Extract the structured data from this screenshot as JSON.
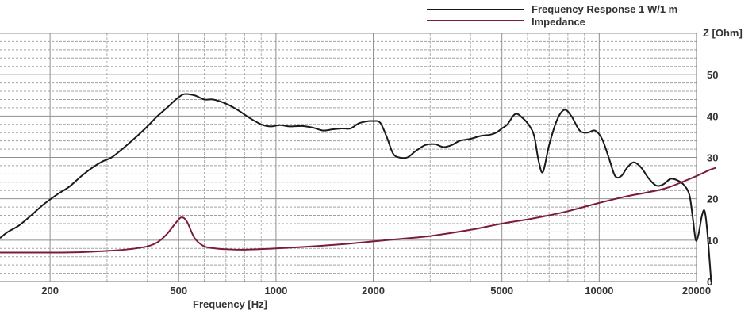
{
  "chart_data": {
    "type": "line",
    "xlabel": "Frequency [Hz]",
    "ylabel": "Z [Ohm]",
    "x_scale": "log",
    "xlim": [
      140,
      20000
    ],
    "ylim": [
      0,
      60
    ],
    "x_ticks": [
      200,
      500,
      1000,
      2000,
      5000,
      10000,
      20000
    ],
    "x_tick_labels": [
      "200",
      "500",
      "1000",
      "2000",
      "5000",
      "10000",
      "20000"
    ],
    "y_ticks": [
      0,
      10,
      20,
      30,
      40,
      50
    ],
    "y_tick_labels": [
      "0",
      "10",
      "20",
      "30",
      "40",
      "50"
    ],
    "grid": true,
    "legend_position": "top-right",
    "series": [
      {
        "name": "Frequency Response 1 W/1 m",
        "color": "#1a1a1a",
        "points": [
          [
            140,
            10.5
          ],
          [
            148,
            12.0
          ],
          [
            160,
            13.5
          ],
          [
            175,
            16.0
          ],
          [
            190,
            18.5
          ],
          [
            210,
            21.0
          ],
          [
            230,
            23.0
          ],
          [
            250,
            25.5
          ],
          [
            270,
            27.5
          ],
          [
            290,
            29.0
          ],
          [
            310,
            30.0
          ],
          [
            340,
            32.5
          ],
          [
            370,
            35.0
          ],
          [
            400,
            37.5
          ],
          [
            430,
            40.0
          ],
          [
            460,
            42.0
          ],
          [
            490,
            44.0
          ],
          [
            520,
            45.3
          ],
          [
            560,
            45.0
          ],
          [
            600,
            44.0
          ],
          [
            640,
            44.0
          ],
          [
            700,
            43.0
          ],
          [
            760,
            41.5
          ],
          [
            830,
            39.5
          ],
          [
            900,
            38.0
          ],
          [
            960,
            37.5
          ],
          [
            1030,
            37.8
          ],
          [
            1100,
            37.5
          ],
          [
            1200,
            37.6
          ],
          [
            1300,
            37.2
          ],
          [
            1400,
            36.5
          ],
          [
            1500,
            36.8
          ],
          [
            1600,
            37.0
          ],
          [
            1700,
            37.0
          ],
          [
            1800,
            38.2
          ],
          [
            1900,
            38.7
          ],
          [
            2000,
            38.8
          ],
          [
            2100,
            38.4
          ],
          [
            2200,
            35.0
          ],
          [
            2300,
            31.0
          ],
          [
            2400,
            30.0
          ],
          [
            2550,
            30.0
          ],
          [
            2700,
            31.5
          ],
          [
            2900,
            33.0
          ],
          [
            3100,
            33.2
          ],
          [
            3300,
            32.5
          ],
          [
            3500,
            33.0
          ],
          [
            3700,
            34.0
          ],
          [
            4000,
            34.5
          ],
          [
            4300,
            35.2
          ],
          [
            4600,
            35.5
          ],
          [
            4800,
            36.0
          ],
          [
            5000,
            37.0
          ],
          [
            5200,
            38.0
          ],
          [
            5500,
            40.5
          ],
          [
            5800,
            39.5
          ],
          [
            6100,
            37.5
          ],
          [
            6300,
            35.0
          ],
          [
            6500,
            29.0
          ],
          [
            6700,
            26.5
          ],
          [
            7000,
            33.0
          ],
          [
            7400,
            39.0
          ],
          [
            7800,
            41.5
          ],
          [
            8200,
            40.0
          ],
          [
            8700,
            36.5
          ],
          [
            9200,
            36.0
          ],
          [
            9700,
            36.5
          ],
          [
            10200,
            34.5
          ],
          [
            10700,
            30.0
          ],
          [
            11200,
            25.5
          ],
          [
            11700,
            25.5
          ],
          [
            12200,
            27.5
          ],
          [
            12800,
            28.8
          ],
          [
            13500,
            27.5
          ],
          [
            14200,
            25.0
          ],
          [
            15000,
            23.2
          ],
          [
            15800,
            23.5
          ],
          [
            16600,
            24.8
          ],
          [
            17400,
            24.5
          ],
          [
            18200,
            23.5
          ],
          [
            19000,
            21.0
          ],
          [
            19500,
            15.0
          ],
          [
            19900,
            10.0
          ],
          [
            20300,
            11.5
          ],
          [
            20800,
            16.0
          ],
          [
            21200,
            17.0
          ],
          [
            21600,
            12.0
          ],
          [
            22200,
            0.0
          ]
        ]
      },
      {
        "name": "Impedance",
        "color": "#7b1c3c",
        "points": [
          [
            140,
            7.0
          ],
          [
            200,
            7.0
          ],
          [
            250,
            7.1
          ],
          [
            300,
            7.4
          ],
          [
            350,
            7.8
          ],
          [
            400,
            8.5
          ],
          [
            430,
            9.5
          ],
          [
            460,
            11.5
          ],
          [
            490,
            14.2
          ],
          [
            510,
            15.5
          ],
          [
            530,
            14.5
          ],
          [
            560,
            10.5
          ],
          [
            600,
            8.5
          ],
          [
            650,
            8.0
          ],
          [
            700,
            7.8
          ],
          [
            800,
            7.7
          ],
          [
            1000,
            8.0
          ],
          [
            1300,
            8.5
          ],
          [
            1600,
            9.0
          ],
          [
            2000,
            9.7
          ],
          [
            2500,
            10.4
          ],
          [
            3000,
            11.0
          ],
          [
            4000,
            12.5
          ],
          [
            5000,
            14.0
          ],
          [
            6000,
            15.0
          ],
          [
            7000,
            16.0
          ],
          [
            8000,
            17.0
          ],
          [
            10000,
            19.0
          ],
          [
            12000,
            20.5
          ],
          [
            14000,
            21.5
          ],
          [
            16000,
            22.5
          ],
          [
            18000,
            24.0
          ],
          [
            20000,
            25.5
          ],
          [
            22000,
            27.0
          ],
          [
            23000,
            27.5
          ]
        ]
      }
    ]
  }
}
